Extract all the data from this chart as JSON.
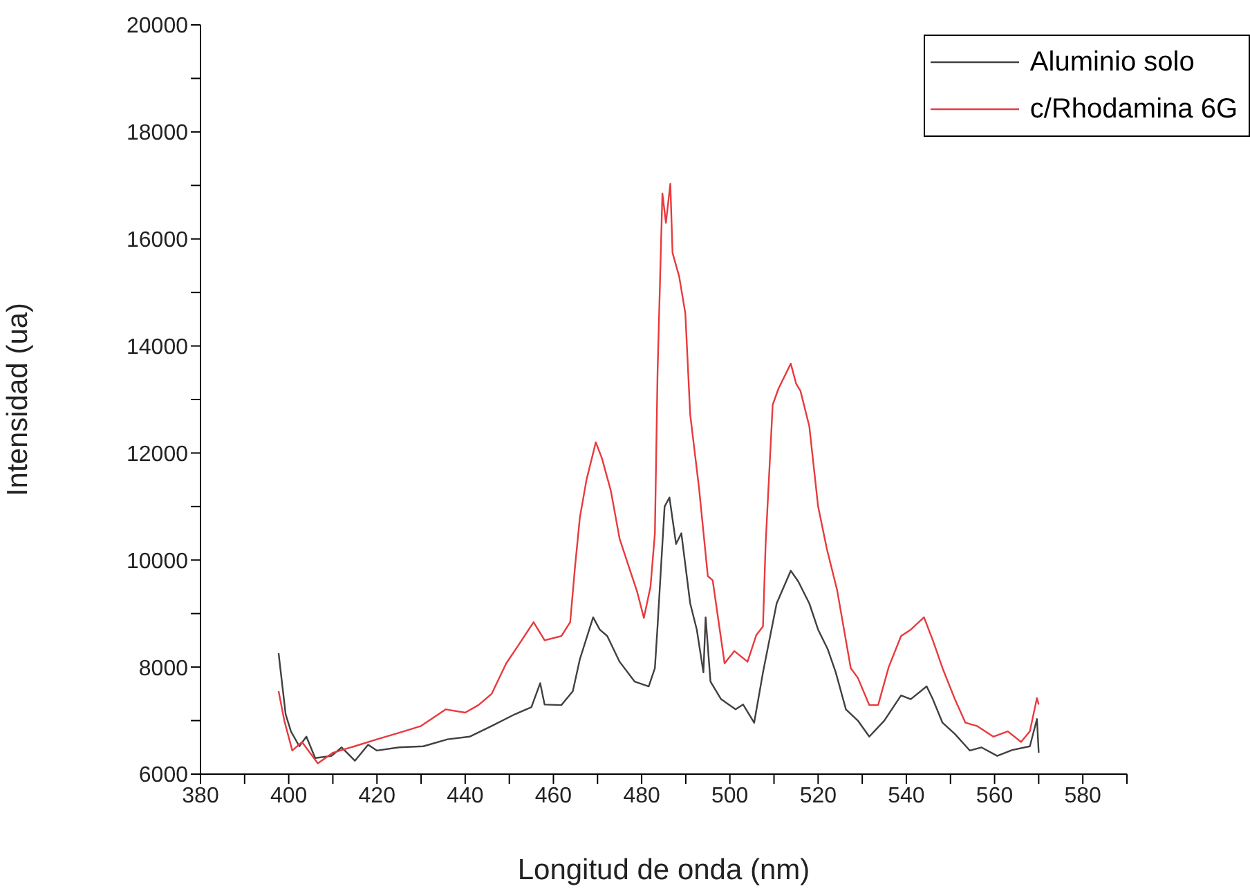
{
  "chart_data": {
    "type": "line",
    "xlabel": "Longitud de onda (nm)",
    "ylabel": "Intensidad (ua)",
    "xlim": [
      380,
      590
    ],
    "xticks": [
      380,
      {
        "value": 390,
        "label": null
      },
      400,
      {
        "value": 410,
        "label": null
      },
      420,
      {
        "value": 430,
        "label": null
      },
      440,
      {
        "value": 450,
        "label": null
      },
      460,
      {
        "value": 470,
        "label": null
      },
      480,
      {
        "value": 490,
        "label": null
      },
      500,
      {
        "value": 510,
        "label": null
      },
      520,
      {
        "value": 530,
        "label": null
      },
      540,
      {
        "value": 550,
        "label": null
      },
      560,
      {
        "value": 570,
        "label": null
      },
      580,
      {
        "value": 590,
        "label": null
      }
    ],
    "ylim": [
      6000,
      20000
    ],
    "yticks": [
      6000,
      {
        "value": 7000,
        "label": null
      },
      8000,
      {
        "value": 9000,
        "label": null
      },
      10000,
      {
        "value": 11000,
        "label": null
      },
      12000,
      {
        "value": 13000,
        "label": null
      },
      14000,
      {
        "value": 15000,
        "label": null
      },
      16000,
      {
        "value": 17000,
        "label": null
      },
      18000,
      {
        "value": 19000,
        "label": null
      },
      20000
    ],
    "grid": false,
    "legend": "top right",
    "marker": "none",
    "line_style": "solid",
    "series": [
      {
        "name": "Aluminio solo",
        "color": "#404040",
        "x": [
          397.7,
          399.3,
          400.5,
          402.4,
          404,
          406,
          409.7,
          412,
          415,
          418,
          420,
          425,
          430.5,
          436,
          441,
          446,
          451.3,
          455,
          457,
          458,
          461.8,
          464.4,
          466,
          469,
          470.5,
          472.2,
          475,
          478.4,
          481.6,
          483,
          483.6,
          485.2,
          486.3,
          487.8,
          489,
          491,
          492.5,
          494,
          494.5,
          495.6,
          498,
          501.3,
          503,
          505.5,
          507.5,
          510.6,
          513.8,
          515.5,
          518,
          520,
          522.2,
          524,
          526.3,
          529,
          531.6,
          535,
          538.8,
          541,
          544.6,
          546,
          548.2,
          551,
          554.4,
          557,
          560.6,
          564,
          568,
          569.6,
          570
        ],
        "values": [
          8260,
          7120,
          6800,
          6520,
          6700,
          6300,
          6340,
          6500,
          6250,
          6550,
          6440,
          6500,
          6520,
          6650,
          6700,
          6900,
          7120,
          7250,
          7700,
          7300,
          7290,
          7550,
          8150,
          8930,
          8700,
          8580,
          8100,
          7730,
          7640,
          7980,
          8760,
          11000,
          11170,
          10300,
          10500,
          9190,
          8700,
          7900,
          8930,
          7730,
          7400,
          7210,
          7300,
          6960,
          7900,
          9190,
          9800,
          9600,
          9190,
          8700,
          8330,
          7900,
          7210,
          7000,
          6700,
          7000,
          7470,
          7400,
          7640,
          7400,
          6960,
          6750,
          6440,
          6500,
          6340,
          6450,
          6520,
          7030,
          6400
        ]
      },
      {
        "name": "c/Rhodamina 6G",
        "color": "#e83a3d",
        "x": [
          397.7,
          399,
          400.8,
          403,
          406.6,
          410,
          414.9,
          420,
          425.3,
          430,
          435.6,
          440,
          443,
          446,
          449.3,
          452,
          455.5,
          458,
          461.8,
          463.8,
          464.9,
          466,
          467.5,
          469.6,
          471,
          473,
          475,
          477,
          479,
          480.5,
          482,
          483,
          483.6,
          484.7,
          485.5,
          486.5,
          487,
          488.5,
          489.9,
          491,
          493,
          495,
          496.1,
          498.8,
          501,
          504,
          506,
          507.5,
          508.1,
          509.7,
          511,
          513.8,
          515,
          516,
          518,
          520,
          522,
          524.3,
          527.4,
          529,
          531.6,
          533.6,
          536,
          538.8,
          541,
          544,
          546,
          548.2,
          551,
          553.4,
          556,
          559.7,
          563,
          566,
          568,
          569.6,
          570
        ],
        "values": [
          7550,
          7000,
          6440,
          6600,
          6200,
          6400,
          6520,
          6650,
          6780,
          6900,
          7210,
          7150,
          7290,
          7500,
          8070,
          8400,
          8840,
          8500,
          8580,
          8840,
          9880,
          10800,
          11500,
          12200,
          11900,
          11300,
          10400,
          9900,
          9400,
          8920,
          9500,
          10500,
          13490,
          16850,
          16300,
          17030,
          15740,
          15300,
          14610,
          12720,
          11350,
          9700,
          9620,
          8070,
          8300,
          8100,
          8600,
          8760,
          10300,
          12900,
          13200,
          13670,
          13300,
          13160,
          12500,
          11000,
          10200,
          9440,
          7980,
          7800,
          7290,
          7290,
          8000,
          8580,
          8700,
          8930,
          8500,
          7980,
          7400,
          6960,
          6900,
          6700,
          6800,
          6600,
          6800,
          7420,
          7300
        ]
      }
    ]
  }
}
